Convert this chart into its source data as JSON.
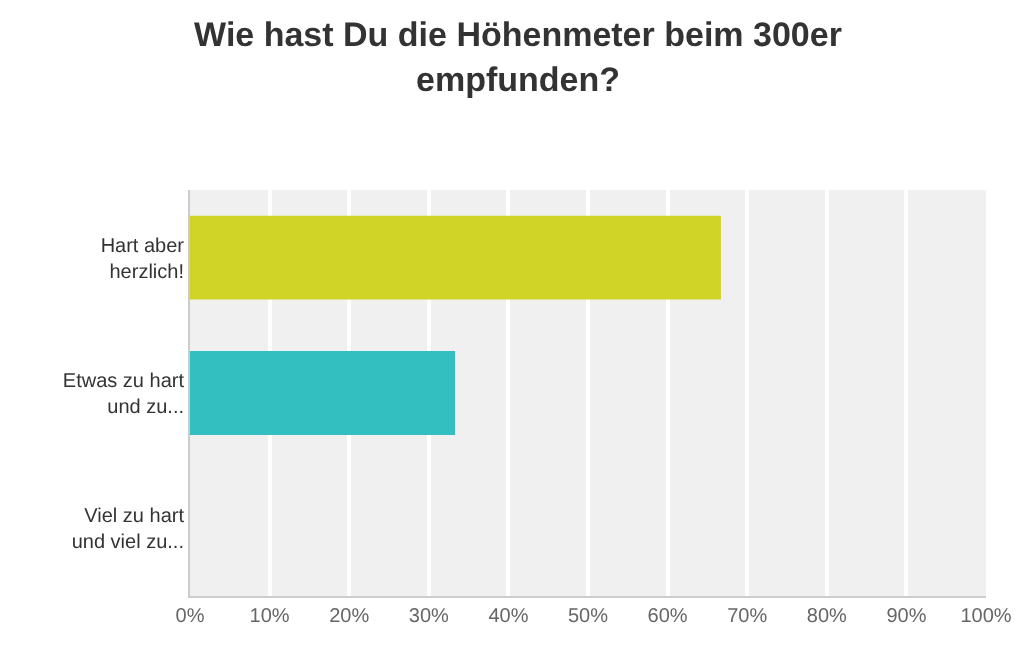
{
  "chart_data": {
    "type": "bar",
    "orientation": "horizontal",
    "title": "Wie hast Du die Höhenmeter beim 300er\nempfunden?",
    "categories": [
      "Hart aber\nherzlich!",
      "Etwas zu hart\nund zu...",
      "Viel zu hart\nund viel zu..."
    ],
    "values": [
      66.7,
      33.3,
      0
    ],
    "colors": [
      "#d0d426",
      "#33bec0",
      "#f7a83d"
    ],
    "xlim": [
      0,
      100
    ],
    "xticks": [
      {
        "value": 0,
        "label": "0%"
      },
      {
        "value": 10,
        "label": "10%"
      },
      {
        "value": 20,
        "label": "20%"
      },
      {
        "value": 30,
        "label": "30%"
      },
      {
        "value": 40,
        "label": "40%"
      },
      {
        "value": 50,
        "label": "50%"
      },
      {
        "value": 60,
        "label": "60%"
      },
      {
        "value": 70,
        "label": "70%"
      },
      {
        "value": 80,
        "label": "80%"
      },
      {
        "value": 90,
        "label": "90%"
      },
      {
        "value": 100,
        "label": "100%"
      }
    ],
    "grid": "x"
  }
}
